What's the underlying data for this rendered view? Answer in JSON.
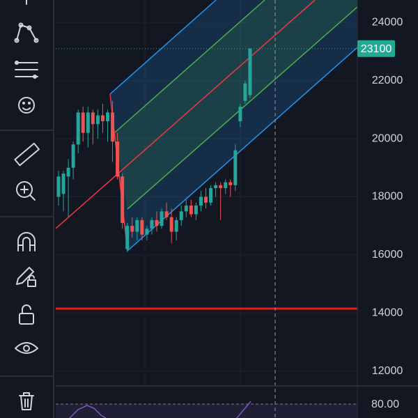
{
  "chart_data": {
    "type": "candlestick",
    "open": [
      18000,
      18100,
      18700,
      19000,
      19800,
      20900,
      20200,
      20900,
      20500,
      20800,
      20600,
      20900,
      19900,
      18700,
      16200,
      17000,
      16800,
      17200,
      16700,
      16900,
      17200,
      17000,
      17500,
      17300,
      16800,
      17200,
      17500,
      17700,
      17400,
      17700,
      18000,
      17800,
      18300,
      18400,
      18300,
      18500,
      18400,
      20600,
      21300,
      21500
    ],
    "high": [
      18900,
      18900,
      19300,
      19900,
      21000,
      21100,
      21100,
      21000,
      21000,
      21200,
      21000,
      21300,
      20200,
      18800,
      17100,
      17300,
      17300,
      17300,
      17000,
      17300,
      17500,
      17600,
      17800,
      17600,
      17300,
      17700,
      17900,
      17900,
      17800,
      18200,
      18300,
      18400,
      18500,
      18500,
      18600,
      18600,
      19800,
      21200,
      22000,
      23100
    ],
    "low": [
      17700,
      17500,
      17300,
      18600,
      19500,
      19900,
      19700,
      19800,
      20000,
      20200,
      19900,
      19200,
      18600,
      16900,
      16100,
      16600,
      16500,
      16500,
      16500,
      16700,
      16800,
      16900,
      17200,
      16400,
      16500,
      17000,
      17300,
      17300,
      17200,
      17500,
      17600,
      17700,
      18000,
      17200,
      18100,
      18000,
      18200,
      20400,
      21200,
      21400
    ],
    "close": [
      18700,
      18800,
      19000,
      19800,
      20900,
      20200,
      20900,
      20500,
      20800,
      20600,
      20900,
      19900,
      18700,
      17100,
      17000,
      16800,
      17200,
      16700,
      16900,
      17200,
      17000,
      17500,
      17300,
      16800,
      17200,
      17500,
      17700,
      17400,
      17700,
      18000,
      17800,
      18300,
      18400,
      18300,
      18500,
      18400,
      19600,
      21100,
      21900,
      23100
    ],
    "up_color": "#26a69a",
    "down_color": "#ef5350",
    "ylim": [
      11470,
      24770
    ],
    "yticks": [
      12000,
      14000,
      16000,
      18000,
      20000,
      22000,
      24000
    ],
    "grid": true,
    "last_price": 23100,
    "last_price_color": "#22ab94"
  },
  "indicator_pane": {
    "level_label": "80.00"
  }
}
